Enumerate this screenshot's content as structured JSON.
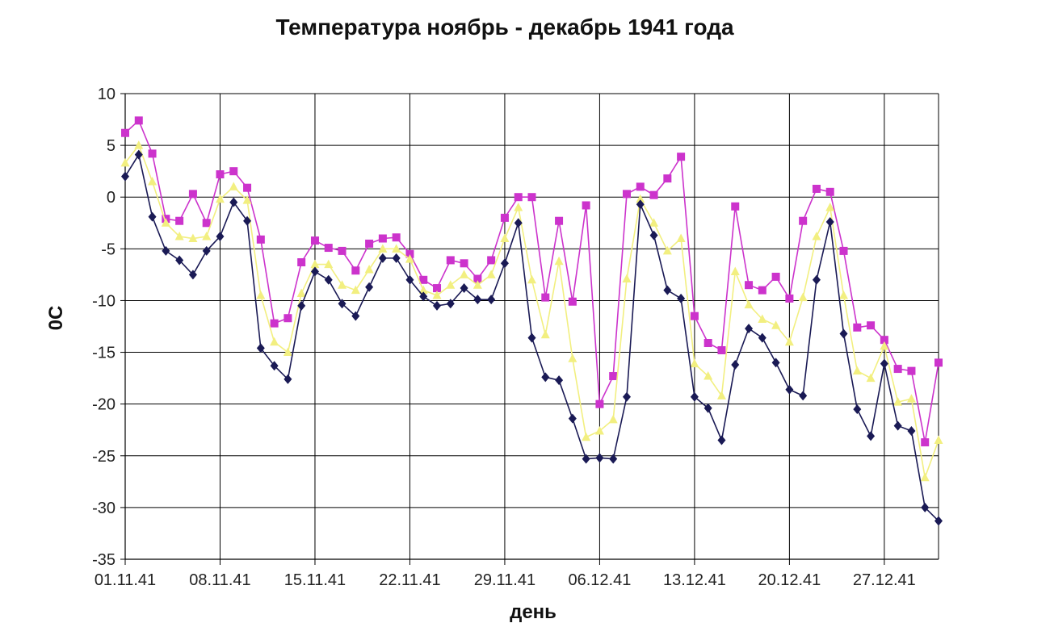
{
  "chart_data": {
    "type": "line",
    "title": "Температура ноябрь  - декабрь 1941 года",
    "xlabel": "день",
    "ylabel": "0C",
    "ylim": [
      -35,
      10
    ],
    "yticks": [
      10,
      5,
      0,
      -5,
      -10,
      -15,
      -20,
      -25,
      -30,
      -35
    ],
    "grid": true,
    "legend": "none",
    "x_tick_labels": [
      "01.11.41",
      "08.11.41",
      "15.11.41",
      "22.11.41",
      "29.11.41",
      "06.12.41",
      "13.12.41",
      "20.12.41",
      "27.12.41"
    ],
    "x_tick_days": [
      1,
      8,
      15,
      22,
      29,
      36,
      43,
      50,
      57
    ],
    "x_range": [
      1,
      61
    ],
    "series": [
      {
        "color": "#cc33cc",
        "marker": "square",
        "values": [
          6.2,
          7.4,
          4.2,
          -2.1,
          -2.3,
          0.3,
          -2.5,
          2.2,
          2.5,
          0.9,
          -4.1,
          -12.2,
          -11.7,
          -6.3,
          -4.2,
          -4.9,
          -5.2,
          -7.1,
          -4.5,
          -4.0,
          -3.9,
          -5.5,
          -8.0,
          -8.8,
          -6.1,
          -6.4,
          -7.9,
          -6.1,
          -2.0,
          0.0,
          0.0,
          -9.7,
          -2.3,
          -10.1,
          -0.8,
          -20.0,
          -17.3,
          0.3,
          1.0,
          0.2,
          1.8,
          3.9,
          -11.5,
          -14.1,
          -14.8,
          -0.9,
          -8.5,
          -9.0,
          -7.7,
          -9.8,
          -2.3,
          0.8,
          0.5,
          -5.2,
          -12.6,
          -12.4,
          -13.8,
          -16.6,
          -16.8,
          -23.7,
          -16.0
        ]
      },
      {
        "color": "#f2ef80",
        "marker": "triangle",
        "values": [
          3.3,
          5.0,
          1.5,
          -2.5,
          -3.8,
          -4.0,
          -3.8,
          -0.2,
          1.0,
          -0.3,
          -9.5,
          -14.0,
          -15.0,
          -9.3,
          -6.5,
          -6.5,
          -8.5,
          -9.0,
          -7.0,
          -5.0,
          -5.0,
          -6.0,
          -9.0,
          -9.5,
          -8.5,
          -7.5,
          -8.5,
          -7.5,
          -4.0,
          -1.0,
          -8.0,
          -13.3,
          -6.2,
          -15.6,
          -23.2,
          -22.6,
          -21.5,
          -7.9,
          -0.2,
          -2.5,
          -5.2,
          -4.0,
          -16.1,
          -17.3,
          -19.2,
          -7.2,
          -10.4,
          -11.8,
          -12.4,
          -14.0,
          -9.7,
          -3.8,
          -1.0,
          -9.5,
          -16.8,
          -17.5,
          -14.4,
          -19.8,
          -19.5,
          -27.1,
          -23.5
        ]
      },
      {
        "color": "#1a1a55",
        "marker": "diamond",
        "values": [
          2.0,
          4.1,
          -1.9,
          -5.2,
          -6.1,
          -7.5,
          -5.2,
          -3.8,
          -0.5,
          -2.3,
          -14.6,
          -16.3,
          -17.6,
          -10.5,
          -7.2,
          -8.0,
          -10.3,
          -11.5,
          -8.7,
          -5.9,
          -5.9,
          -8.0,
          -9.6,
          -10.5,
          -10.3,
          -8.8,
          -9.9,
          -9.9,
          -6.4,
          -2.5,
          -13.6,
          -17.4,
          -17.7,
          -21.4,
          -25.3,
          -25.2,
          -25.3,
          -19.3,
          -0.7,
          -3.7,
          -9.0,
          -9.8,
          -19.3,
          -20.4,
          -23.5,
          -16.2,
          -12.7,
          -13.6,
          -16.0,
          -18.6,
          -19.2,
          -8.0,
          -2.4,
          -13.2,
          -20.5,
          -23.1,
          -16.1,
          -22.1,
          -22.6,
          -30.0,
          -31.3
        ]
      }
    ]
  }
}
